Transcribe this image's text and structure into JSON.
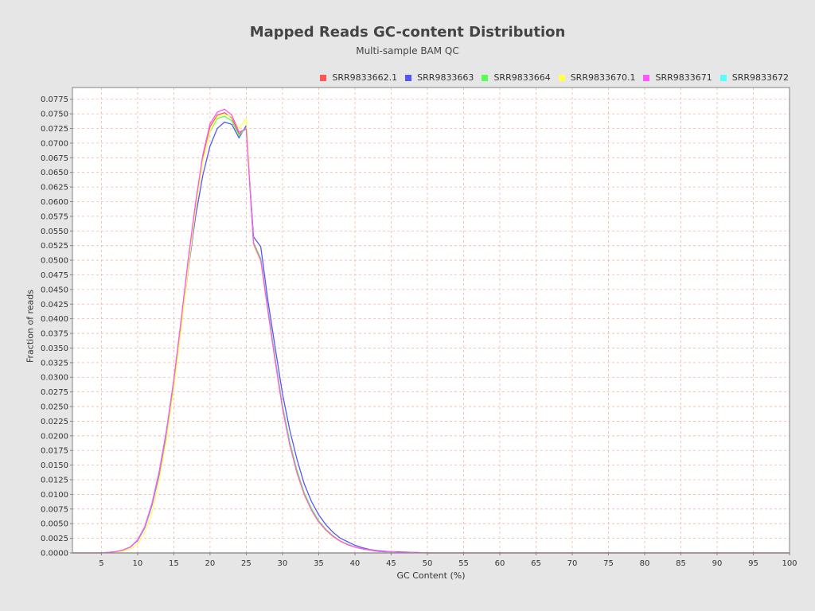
{
  "chart_data": {
    "type": "line",
    "title": "Mapped Reads GC-content Distribution",
    "subtitle": "Multi-sample BAM QC",
    "xlabel": "GC Content (%)",
    "ylabel": "Fraction of reads",
    "xlim": [
      1,
      100
    ],
    "ylim": [
      0,
      0.0795
    ],
    "x_ticks": [
      5,
      10,
      15,
      20,
      25,
      30,
      35,
      40,
      45,
      50,
      55,
      60,
      65,
      70,
      75,
      80,
      85,
      90,
      95,
      100
    ],
    "y_ticks": [
      "0.0000",
      "0.0025",
      "0.0050",
      "0.0075",
      "0.0100",
      "0.0125",
      "0.0150",
      "0.0175",
      "0.0200",
      "0.0225",
      "0.0250",
      "0.0275",
      "0.0300",
      "0.0325",
      "0.0350",
      "0.0375",
      "0.0400",
      "0.0425",
      "0.0450",
      "0.0475",
      "0.0500",
      "0.0525",
      "0.0550",
      "0.0575",
      "0.0600",
      "0.0625",
      "0.0650",
      "0.0675",
      "0.0700",
      "0.0725",
      "0.0750",
      "0.0775"
    ],
    "grid": true,
    "legend_position": "top-right",
    "series": [
      {
        "name": "SRR9833662.1",
        "color": "#ff5555",
        "points": [
          [
            1,
            0
          ],
          [
            5,
            0
          ],
          [
            6,
            0.0001
          ],
          [
            7,
            0.0002
          ],
          [
            8,
            0.0005
          ],
          [
            9,
            0.001
          ],
          [
            10,
            0.0022
          ],
          [
            11,
            0.0045
          ],
          [
            12,
            0.0085
          ],
          [
            13,
            0.014
          ],
          [
            14,
            0.021
          ],
          [
            15,
            0.0295
          ],
          [
            16,
            0.0395
          ],
          [
            17,
            0.05
          ],
          [
            18,
            0.0595
          ],
          [
            19,
            0.0675
          ],
          [
            20,
            0.0728
          ],
          [
            21,
            0.0748
          ],
          [
            22,
            0.0752
          ],
          [
            23,
            0.0743
          ],
          [
            24,
            0.0716
          ],
          [
            25,
            0.0725
          ],
          [
            26,
            0.053
          ],
          [
            27,
            0.0502
          ],
          [
            28,
            0.0415
          ],
          [
            29,
            0.033
          ],
          [
            30,
            0.025
          ],
          [
            31,
            0.0188
          ],
          [
            32,
            0.014
          ],
          [
            33,
            0.0102
          ],
          [
            34,
            0.0075
          ],
          [
            35,
            0.0055
          ],
          [
            36,
            0.004
          ],
          [
            37,
            0.0029
          ],
          [
            38,
            0.002
          ],
          [
            39,
            0.0015
          ],
          [
            40,
            0.001
          ],
          [
            41,
            0.0007
          ],
          [
            42,
            0.0005
          ],
          [
            43,
            0.0003
          ],
          [
            44,
            0.0002
          ],
          [
            45,
            0.0002
          ],
          [
            46,
            0.0001
          ],
          [
            48,
            0.0001
          ],
          [
            50,
            0
          ],
          [
            100,
            0
          ]
        ]
      },
      {
        "name": "SRR9833663",
        "color": "#5555ff",
        "points": [
          [
            1,
            0
          ],
          [
            5,
            0
          ],
          [
            6,
            0.0001
          ],
          [
            7,
            0.0002
          ],
          [
            8,
            0.0005
          ],
          [
            9,
            0.001
          ],
          [
            10,
            0.0021
          ],
          [
            11,
            0.0043
          ],
          [
            12,
            0.0082
          ],
          [
            13,
            0.0135
          ],
          [
            14,
            0.0205
          ],
          [
            15,
            0.029
          ],
          [
            16,
            0.0385
          ],
          [
            17,
            0.0485
          ],
          [
            18,
            0.0575
          ],
          [
            19,
            0.0645
          ],
          [
            20,
            0.0695
          ],
          [
            21,
            0.0725
          ],
          [
            22,
            0.0736
          ],
          [
            23,
            0.0732
          ],
          [
            24,
            0.0709
          ],
          [
            25,
            0.073
          ],
          [
            26,
            0.054
          ],
          [
            27,
            0.0523
          ],
          [
            28,
            0.043
          ],
          [
            29,
            0.035
          ],
          [
            30,
            0.0272
          ],
          [
            31,
            0.021
          ],
          [
            32,
            0.016
          ],
          [
            33,
            0.0118
          ],
          [
            34,
            0.0088
          ],
          [
            35,
            0.0065
          ],
          [
            36,
            0.0048
          ],
          [
            37,
            0.0035
          ],
          [
            38,
            0.0025
          ],
          [
            39,
            0.0019
          ],
          [
            40,
            0.0013
          ],
          [
            41,
            0.0009
          ],
          [
            42,
            0.0006
          ],
          [
            43,
            0.0004
          ],
          [
            44,
            0.0003
          ],
          [
            45,
            0.0002
          ],
          [
            46,
            0.0002
          ],
          [
            48,
            0.0001
          ],
          [
            50,
            0
          ],
          [
            100,
            0
          ]
        ]
      },
      {
        "name": "SRR9833664",
        "color": "#55ff55",
        "points": [
          [
            1,
            0
          ],
          [
            5,
            0
          ],
          [
            6,
            0.0001
          ],
          [
            7,
            0.0002
          ],
          [
            8,
            0.0005
          ],
          [
            9,
            0.001
          ],
          [
            10,
            0.0022
          ],
          [
            11,
            0.0044
          ],
          [
            12,
            0.0084
          ],
          [
            13,
            0.0138
          ],
          [
            14,
            0.0208
          ],
          [
            15,
            0.0292
          ],
          [
            16,
            0.039
          ],
          [
            17,
            0.0495
          ],
          [
            18,
            0.059
          ],
          [
            19,
            0.067
          ],
          [
            20,
            0.072
          ],
          [
            21,
            0.0742
          ],
          [
            22,
            0.0746
          ],
          [
            23,
            0.0738
          ],
          [
            24,
            0.0713
          ],
          [
            25,
            0.0726
          ],
          [
            26,
            0.053
          ],
          [
            27,
            0.0503
          ],
          [
            28,
            0.0416
          ],
          [
            29,
            0.0332
          ],
          [
            30,
            0.0252
          ],
          [
            31,
            0.019
          ],
          [
            32,
            0.0141
          ],
          [
            33,
            0.0103
          ],
          [
            34,
            0.0076
          ],
          [
            35,
            0.0055
          ],
          [
            36,
            0.004
          ],
          [
            37,
            0.0029
          ],
          [
            38,
            0.002
          ],
          [
            39,
            0.0015
          ],
          [
            40,
            0.001
          ],
          [
            41,
            0.0007
          ],
          [
            42,
            0.0005
          ],
          [
            43,
            0.0003
          ],
          [
            44,
            0.0002
          ],
          [
            45,
            0.0002
          ],
          [
            46,
            0.0001
          ],
          [
            48,
            0.0001
          ],
          [
            50,
            0
          ],
          [
            100,
            0
          ]
        ]
      },
      {
        "name": "SRR9833670.1",
        "color": "#ffff55",
        "points": [
          [
            1,
            0
          ],
          [
            5,
            0
          ],
          [
            6,
            0.0001
          ],
          [
            7,
            0.0001
          ],
          [
            8,
            0.0003
          ],
          [
            9,
            0.0007
          ],
          [
            10,
            0.0015
          ],
          [
            11,
            0.0035
          ],
          [
            12,
            0.007
          ],
          [
            13,
            0.0125
          ],
          [
            14,
            0.0195
          ],
          [
            15,
            0.028
          ],
          [
            16,
            0.038
          ],
          [
            17,
            0.0488
          ],
          [
            18,
            0.0585
          ],
          [
            19,
            0.0668
          ],
          [
            20,
            0.0722
          ],
          [
            21,
            0.0745
          ],
          [
            22,
            0.0749
          ],
          [
            23,
            0.0745
          ],
          [
            24,
            0.0725
          ],
          [
            25,
            0.0742
          ],
          [
            26,
            0.0525
          ],
          [
            27,
            0.0498
          ],
          [
            28,
            0.041
          ],
          [
            29,
            0.0325
          ],
          [
            30,
            0.0245
          ],
          [
            31,
            0.0183
          ],
          [
            32,
            0.0135
          ],
          [
            33,
            0.0098
          ],
          [
            34,
            0.0072
          ],
          [
            35,
            0.0052
          ],
          [
            36,
            0.0038
          ],
          [
            37,
            0.0027
          ],
          [
            38,
            0.0019
          ],
          [
            39,
            0.0014
          ],
          [
            40,
            0.001
          ],
          [
            41,
            0.0007
          ],
          [
            42,
            0.0005
          ],
          [
            43,
            0.0003
          ],
          [
            44,
            0.0002
          ],
          [
            45,
            0.0002
          ],
          [
            46,
            0.0001
          ],
          [
            48,
            0.0001
          ],
          [
            50,
            0
          ],
          [
            100,
            0
          ]
        ]
      },
      {
        "name": "SRR9833671",
        "color": "#ff55ff",
        "points": [
          [
            1,
            0
          ],
          [
            5,
            0
          ],
          [
            6,
            0.0001
          ],
          [
            7,
            0.0002
          ],
          [
            8,
            0.0005
          ],
          [
            9,
            0.001
          ],
          [
            10,
            0.0022
          ],
          [
            11,
            0.0045
          ],
          [
            12,
            0.0085
          ],
          [
            13,
            0.014
          ],
          [
            14,
            0.021
          ],
          [
            15,
            0.0296
          ],
          [
            16,
            0.0397
          ],
          [
            17,
            0.0503
          ],
          [
            18,
            0.0598
          ],
          [
            19,
            0.068
          ],
          [
            20,
            0.0733
          ],
          [
            21,
            0.0753
          ],
          [
            22,
            0.0758
          ],
          [
            23,
            0.0748
          ],
          [
            24,
            0.0719
          ],
          [
            25,
            0.0724
          ],
          [
            26,
            0.0528
          ],
          [
            27,
            0.05
          ],
          [
            28,
            0.0412
          ],
          [
            29,
            0.0327
          ],
          [
            30,
            0.0247
          ],
          [
            31,
            0.0185
          ],
          [
            32,
            0.0137
          ],
          [
            33,
            0.01
          ],
          [
            34,
            0.0073
          ],
          [
            35,
            0.0053
          ],
          [
            36,
            0.0039
          ],
          [
            37,
            0.0028
          ],
          [
            38,
            0.002
          ],
          [
            39,
            0.0014
          ],
          [
            40,
            0.001
          ],
          [
            41,
            0.0007
          ],
          [
            42,
            0.0005
          ],
          [
            43,
            0.0003
          ],
          [
            44,
            0.0002
          ],
          [
            45,
            0.0002
          ],
          [
            46,
            0.0001
          ],
          [
            48,
            0.0001
          ],
          [
            50,
            0
          ],
          [
            100,
            0
          ]
        ]
      },
      {
        "name": "SRR9833672",
        "color": "#55ffff",
        "points": []
      }
    ]
  }
}
